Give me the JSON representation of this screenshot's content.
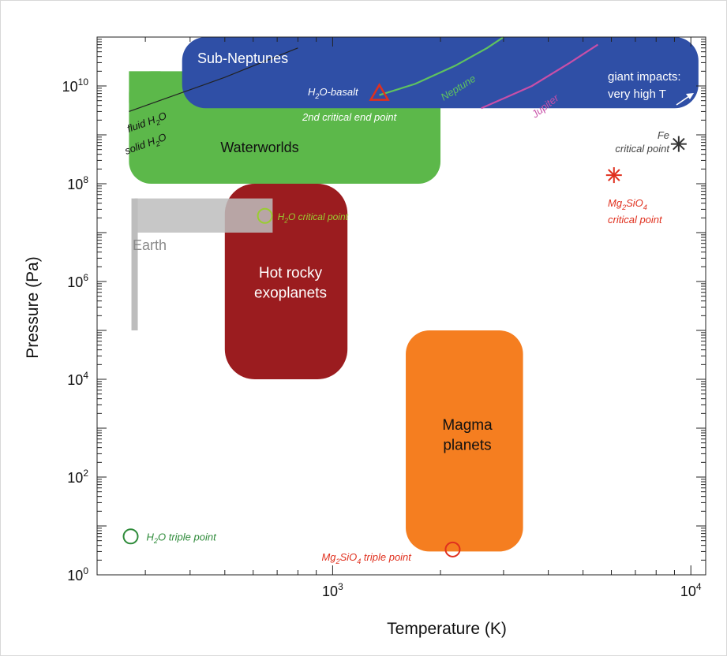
{
  "chart_data": {
    "type": "area",
    "xlabel": "Temperature (K)",
    "ylabel": "Pressure (Pa)",
    "x_scale": "log",
    "y_scale": "log",
    "xlim": [
      220,
      11000
    ],
    "ylim": [
      1,
      100000000000.0
    ],
    "x_ticks": [
      {
        "value": 1000,
        "base": "10",
        "exp": "3"
      },
      {
        "value": 10000,
        "base": "10",
        "exp": "4"
      }
    ],
    "y_ticks": [
      {
        "value": 1,
        "base": "10",
        "exp": "0"
      },
      {
        "value": 100,
        "base": "10",
        "exp": "2"
      },
      {
        "value": 10000,
        "base": "10",
        "exp": "4"
      },
      {
        "value": 1000000,
        "base": "10",
        "exp": "6"
      },
      {
        "value": 100000000,
        "base": "10",
        "exp": "8"
      },
      {
        "value": 10000000000,
        "base": "10",
        "exp": "10"
      }
    ],
    "regions": [
      {
        "key": "waterworlds",
        "label_lines": [
          "Waterworlds"
        ],
        "x": [
          270,
          2000
        ],
        "y": [
          100000000.0,
          20000000000.0
        ],
        "color": "#5cb84a",
        "text_color": "#111111"
      },
      {
        "key": "sub_neptunes",
        "label_lines": [
          "Sub-Neptunes"
        ],
        "x": [
          380,
          10500
        ],
        "y": [
          3500000000.0,
          100000000000.0
        ],
        "color": "#2f4fa6",
        "text_color": "#ffffff"
      },
      {
        "key": "hot_rocky",
        "label_lines": [
          "Hot rocky",
          "exoplanets"
        ],
        "x": [
          500,
          1100
        ],
        "y": [
          10000.0,
          100000000.0
        ],
        "color": "#9b1c1f",
        "text_color": "#ffffff"
      },
      {
        "key": "magma",
        "label_lines": [
          "Magma",
          "planets"
        ],
        "x": [
          1600,
          3400
        ],
        "y": [
          3.0,
          100000.0
        ],
        "color": "#f57e20",
        "text_color": "#111111"
      }
    ],
    "earth": {
      "label": "Earth",
      "bar_x": 280,
      "bar_y": [
        100000.0,
        50000000.0
      ],
      "band_x": [
        280,
        680
      ],
      "band_y": [
        10000000.0,
        50000000.0
      ],
      "color": "#bdbdbd",
      "text_color": "#8a8a8a"
    },
    "curves": [
      {
        "name": "Neptune",
        "color": "#5fc35f",
        "points": [
          [
            1350,
            6500000000.0
          ],
          [
            1700,
            11000000000.0
          ],
          [
            2200,
            26000000000.0
          ],
          [
            2700,
            60000000000.0
          ],
          [
            3000,
            100000000000.0
          ]
        ]
      },
      {
        "name": "Jupiter",
        "color": "#c84fa8",
        "points": [
          [
            2600,
            3500000000.0
          ],
          [
            3600,
            10000000000.0
          ],
          [
            4600,
            30000000000.0
          ],
          [
            5500,
            70000000000.0
          ]
        ]
      }
    ],
    "phase_line": {
      "points": [
        [
          270,
          3000000000.0
        ],
        [
          500,
          15000000000.0
        ],
        [
          800,
          60000000000.0
        ]
      ],
      "label_above": [
        "fluid H",
        "2",
        "O"
      ],
      "label_below": [
        "solid H",
        "2",
        "O"
      ],
      "color": "#222222"
    },
    "points": [
      {
        "key": "h2o_triple",
        "x": 273,
        "y": 6.1,
        "marker": "circle",
        "color": "#2e8b3a",
        "label": [
          "H",
          "2",
          "O triple point"
        ]
      },
      {
        "key": "mg2sio4_triple",
        "x": 2163,
        "y": 3.3,
        "marker": "circle",
        "color": "#e0301e",
        "label": [
          "Mg",
          "2",
          "SiO",
          "4",
          " triple point"
        ]
      },
      {
        "key": "h2o_critical",
        "x": 647,
        "y": 22000000.0,
        "marker": "circle",
        "color": "#9acd32",
        "label": [
          "H",
          "2",
          "O critical point"
        ]
      },
      {
        "key": "h2o_basalt",
        "x": 1350,
        "y": 7000000000.0,
        "marker": "triangle",
        "color": "#e0301e",
        "label_top": [
          "H",
          "2",
          "O-basalt"
        ],
        "label_bottom": "2nd critical end point"
      },
      {
        "key": "fe_critical",
        "x": 9250,
        "y": 650000000.0,
        "marker": "asterisk",
        "color": "#333333",
        "label_lines": [
          "Fe",
          "critical point"
        ]
      },
      {
        "key": "mg2sio4_critical",
        "x": 6100,
        "y": 150000000.0,
        "marker": "asterisk",
        "color": "#e0301e",
        "label_lines": [
          [
            "Mg",
            "2",
            "SiO",
            "4"
          ],
          "critical point"
        ]
      }
    ],
    "annotations": [
      {
        "key": "giant_impacts",
        "lines": [
          "giant impacts:",
          "very high T"
        ],
        "color": "#ffffff"
      }
    ],
    "legend": "none",
    "grid": false
  }
}
